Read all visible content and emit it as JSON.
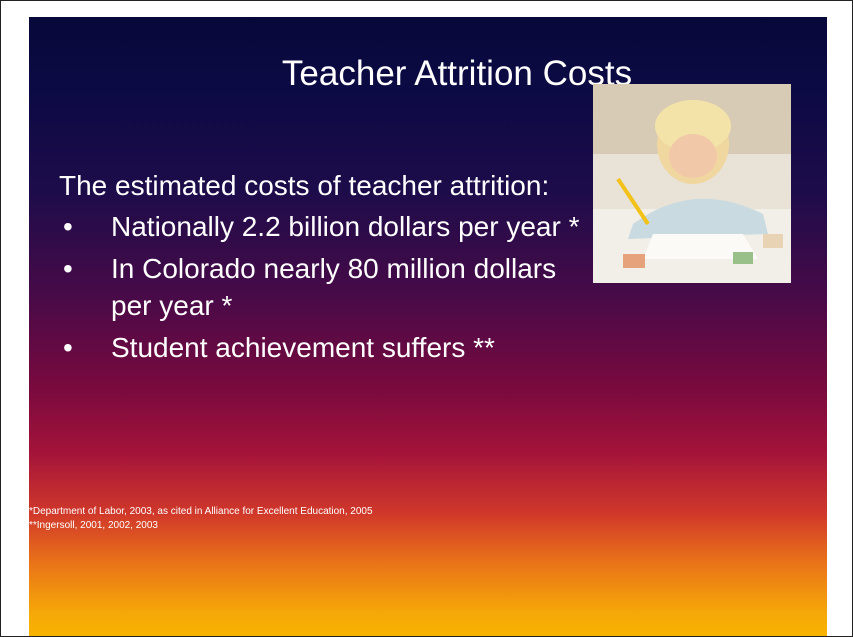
{
  "slide": {
    "title": "Teacher Attrition Costs",
    "intro": "The estimated costs of teacher attrition:",
    "bullets": [
      "Nationally 2.2 billion dollars per year *",
      "In Colorado nearly 80 million dollars per year *",
      "Student achievement suffers **"
    ],
    "footnotes": [
      "*Department of Labor, 2003, as cited in Alliance for Excellent Education, 2005",
      "**Ingersoll, 2001, 2002, 2003"
    ]
  }
}
